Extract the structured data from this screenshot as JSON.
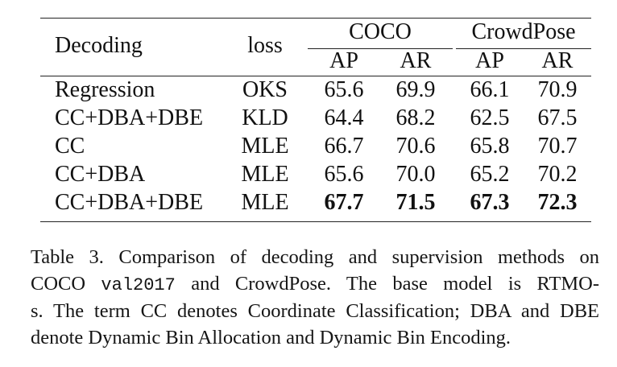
{
  "table": {
    "header": {
      "decoding": "Decoding",
      "loss": "loss",
      "coco": "COCO",
      "crowdpose": "CrowdPose",
      "coco_ap": "AP",
      "coco_ar": "AR",
      "crowd_ap": "AP",
      "crowd_ar": "AR"
    },
    "rows": [
      {
        "decoding": "Regression",
        "loss": "OKS",
        "coco_ap": "65.6",
        "coco_ar": "69.9",
        "crowd_ap": "66.1",
        "crowd_ar": "70.9"
      },
      {
        "decoding": "CC+DBA+DBE",
        "loss": "KLD",
        "coco_ap": "64.4",
        "coco_ar": "68.2",
        "crowd_ap": "62.5",
        "crowd_ar": "67.5"
      },
      {
        "decoding": "CC",
        "loss": "MLE",
        "coco_ap": "66.7",
        "coco_ar": "70.6",
        "crowd_ap": "65.8",
        "crowd_ar": "70.7"
      },
      {
        "decoding": "CC+DBA",
        "loss": "MLE",
        "coco_ap": "65.6",
        "coco_ar": "70.0",
        "crowd_ap": "65.2",
        "crowd_ar": "70.2"
      },
      {
        "decoding": "CC+DBA+DBE",
        "loss": "MLE",
        "coco_ap": "67.7",
        "coco_ar": "71.5",
        "crowd_ap": "67.3",
        "crowd_ar": "72.3"
      }
    ]
  },
  "caption": {
    "line1": "Table 3.  Comparison of decoding and supervision methods on",
    "line2_a": "COCO ",
    "line2_mono": "val2017",
    "line2_b": " and CrowdPose.  The base model is RTMO-",
    "line3": "s. The term CC denotes Coordinate Classification; DBA and DBE",
    "line4": "denote Dynamic Bin Allocation and Dynamic Bin Encoding."
  }
}
